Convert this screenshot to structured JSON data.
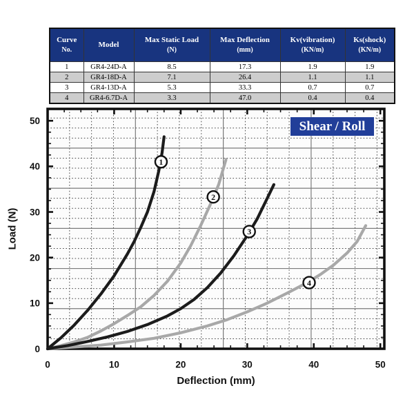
{
  "colors": {
    "navy_header": "#18347f",
    "navy_legend": "#213e99",
    "table_alt_row": "#cdcdcd",
    "curve_black": "#1c1c1c",
    "curve_gray": "#a8a8a8",
    "grid_dash": "#454545",
    "grid_solid": "#7a7a7a",
    "plot_bg": "#fcfcfc",
    "frame": "#111111"
  },
  "table": {
    "headers": [
      [
        "Curve",
        "No."
      ],
      [
        "Model",
        ""
      ],
      [
        "Max Static Load",
        "(N)"
      ],
      [
        "Max Deflection",
        "(mm)"
      ],
      [
        "Kv(vibration)",
        "(KN/m)"
      ],
      [
        "Ks(shock)",
        "(KN/m)"
      ]
    ],
    "rows": [
      [
        "1",
        "GR4-24D-A",
        "8.5",
        "17.3",
        "1.9",
        "1.9"
      ],
      [
        "2",
        "GR4-18D-A",
        "7.1",
        "26.4",
        "1.1",
        "1.1"
      ],
      [
        "3",
        "GR4-13D-A",
        "5.3",
        "33.3",
        "0.7",
        "0.7"
      ],
      [
        "4",
        "GR4-6.7D-A",
        "3.3",
        "47.0",
        "0.4",
        "0.4"
      ]
    ]
  },
  "chart_data": {
    "type": "line",
    "title": "Shear / Roll",
    "xlabel": "Deflection (mm)",
    "ylabel": "Load (N)",
    "xlim": [
      0,
      50.6
    ],
    "ylim": [
      0,
      52.6
    ],
    "x_ticks": [
      0,
      10,
      20,
      30,
      40,
      50
    ],
    "y_ticks": [
      0,
      10,
      20,
      30,
      40,
      50
    ],
    "minor_tick_step": 2.5,
    "grid": {
      "dash_step_x": 3.3,
      "dash_step_y": 2.2,
      "solid_every": 4
    },
    "legend_position": "top-right",
    "series": [
      {
        "name": "1",
        "model": "GR4-24D-A",
        "color": "black",
        "label_xy": [
          17.05,
          41
        ],
        "points": [
          [
            0,
            0
          ],
          [
            2,
            2.4
          ],
          [
            4,
            5.2
          ],
          [
            6,
            8.4
          ],
          [
            8,
            12
          ],
          [
            10,
            16
          ],
          [
            12,
            20.8
          ],
          [
            13,
            23.5
          ],
          [
            14,
            26.6
          ],
          [
            15,
            30
          ],
          [
            16,
            34.5
          ],
          [
            16.7,
            39
          ],
          [
            17.2,
            43
          ],
          [
            17.5,
            46.5
          ]
        ]
      },
      {
        "name": "2",
        "model": "GR4-18D-A",
        "color": "gray",
        "label_xy": [
          24.9,
          33.3
        ],
        "points": [
          [
            0,
            0
          ],
          [
            2,
            0.7
          ],
          [
            4,
            1.5
          ],
          [
            6,
            2.5
          ],
          [
            8,
            3.9
          ],
          [
            10,
            5.5
          ],
          [
            12,
            7.3
          ],
          [
            14,
            9.2
          ],
          [
            16,
            11.7
          ],
          [
            18,
            14.8
          ],
          [
            20,
            18.8
          ],
          [
            21.5,
            22.6
          ],
          [
            23,
            27
          ],
          [
            24.5,
            31.8
          ],
          [
            25.7,
            36
          ],
          [
            26.8,
            41.5
          ]
        ]
      },
      {
        "name": "3",
        "model": "GR4-13D-A",
        "color": "black",
        "label_xy": [
          30.3,
          25.7
        ],
        "points": [
          [
            0,
            0
          ],
          [
            3,
            0.7
          ],
          [
            6,
            1.6
          ],
          [
            9,
            2.6
          ],
          [
            12,
            3.8
          ],
          [
            15,
            5.3
          ],
          [
            18,
            7.2
          ],
          [
            20,
            8.8
          ],
          [
            22,
            10.8
          ],
          [
            24,
            13.4
          ],
          [
            26,
            16.6
          ],
          [
            28,
            20.4
          ],
          [
            30,
            24.8
          ],
          [
            31.5,
            28.5
          ],
          [
            33,
            33
          ],
          [
            34,
            36
          ]
        ]
      },
      {
        "name": "4",
        "model": "GR4-6.7D-A",
        "color": "gray",
        "label_xy": [
          39.3,
          14.5
        ],
        "points": [
          [
            0,
            0
          ],
          [
            4,
            0.4
          ],
          [
            8,
            0.8
          ],
          [
            12,
            1.5
          ],
          [
            16,
            2.3
          ],
          [
            20,
            3.5
          ],
          [
            24,
            5
          ],
          [
            27,
            6.4
          ],
          [
            30,
            8.1
          ],
          [
            33,
            10
          ],
          [
            36,
            12.2
          ],
          [
            39,
            14.5
          ],
          [
            41,
            16.3
          ],
          [
            43,
            18.4
          ],
          [
            45,
            21
          ],
          [
            46.5,
            23.5
          ],
          [
            47.8,
            27
          ]
        ]
      }
    ]
  }
}
